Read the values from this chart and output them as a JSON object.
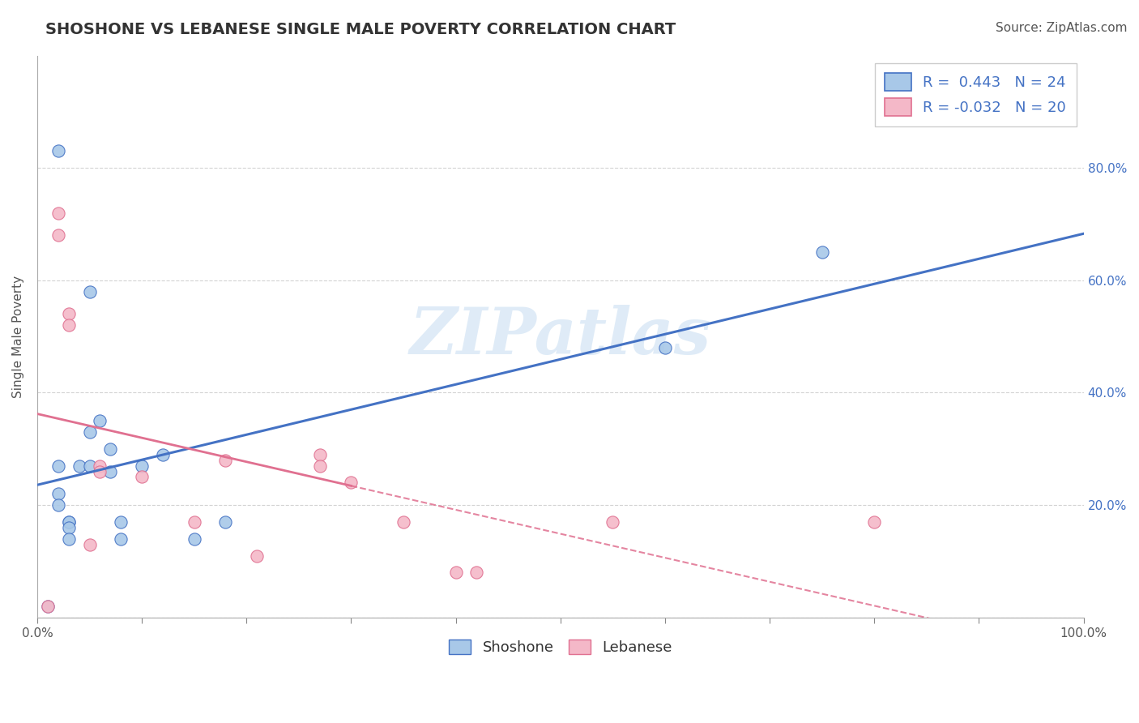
{
  "title": "SHOSHONE VS LEBANESE SINGLE MALE POVERTY CORRELATION CHART",
  "source": "Source: ZipAtlas.com",
  "ylabel": "Single Male Poverty",
  "xlim": [
    0.0,
    1.0
  ],
  "ylim": [
    0.0,
    1.0
  ],
  "shoshone_color": "#A8C8E8",
  "lebanese_color": "#F4B8C8",
  "shoshone_line_color": "#4472C4",
  "lebanese_line_color": "#E07090",
  "shoshone_R": 0.443,
  "shoshone_N": 24,
  "lebanese_R": -0.032,
  "lebanese_N": 20,
  "watermark_text": "ZIPatlas",
  "shoshone_x": [
    0.01,
    0.02,
    0.02,
    0.02,
    0.02,
    0.03,
    0.03,
    0.03,
    0.03,
    0.04,
    0.05,
    0.05,
    0.05,
    0.06,
    0.07,
    0.07,
    0.08,
    0.08,
    0.1,
    0.12,
    0.15,
    0.18,
    0.6,
    0.75
  ],
  "shoshone_y": [
    0.02,
    0.83,
    0.27,
    0.22,
    0.2,
    0.17,
    0.17,
    0.16,
    0.14,
    0.27,
    0.58,
    0.33,
    0.27,
    0.35,
    0.3,
    0.26,
    0.17,
    0.14,
    0.27,
    0.29,
    0.14,
    0.17,
    0.48,
    0.65
  ],
  "lebanese_x": [
    0.01,
    0.02,
    0.02,
    0.03,
    0.03,
    0.05,
    0.06,
    0.06,
    0.1,
    0.15,
    0.18,
    0.21,
    0.27,
    0.27,
    0.3,
    0.35,
    0.4,
    0.42,
    0.55,
    0.8
  ],
  "lebanese_y": [
    0.02,
    0.72,
    0.68,
    0.54,
    0.52,
    0.13,
    0.27,
    0.26,
    0.25,
    0.17,
    0.28,
    0.11,
    0.29,
    0.27,
    0.24,
    0.17,
    0.08,
    0.08,
    0.17,
    0.17
  ],
  "background_color": "#FFFFFF",
  "grid_color": "#CCCCCC",
  "title_fontsize": 14,
  "axis_fontsize": 11,
  "tick_fontsize": 11,
  "legend_fontsize": 13,
  "source_fontsize": 11,
  "right_ytick_color": "#4472C4",
  "right_ytick_positions": [
    0.2,
    0.4,
    0.6,
    0.8
  ],
  "right_ytick_labels": [
    "20.0%",
    "40.0%",
    "60.0%",
    "80.0%"
  ]
}
